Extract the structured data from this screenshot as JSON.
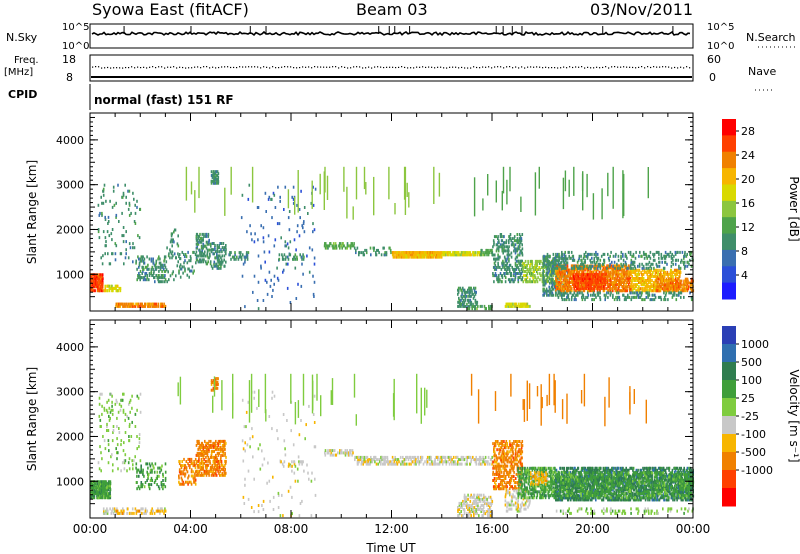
{
  "header": {
    "station": "Syowa East (fitACF)",
    "beam": "Beam 03",
    "date": "03/Nov/2011"
  },
  "strips": {
    "nsky_label": "N.Sky",
    "nsky_ticks": [
      "10^5",
      "10^0"
    ],
    "nsearch_label": "N.Search",
    "nsearch_ticks": [
      "10^5",
      "10^0"
    ],
    "freq_label": "Freq.",
    "freq_unit": "[MHz]",
    "freq_ticks": [
      "18",
      "8"
    ],
    "nave_label": "Nave",
    "nave_ticks": [
      "60",
      "0"
    ],
    "cpid_label": "CPID",
    "cpid_value": "normal (fast) 151 RF"
  },
  "chart_data": [
    {
      "type": "heatmap",
      "title": "",
      "xlabel": "Time UT",
      "ylabel": "Slant Range [km]",
      "x_ticks": [
        "00:00",
        "04:00",
        "08:00",
        "12:00",
        "16:00",
        "20:00",
        "00:00"
      ],
      "x_range_hours": [
        0,
        24
      ],
      "y_ticks": [
        1000,
        2000,
        3000,
        4000
      ],
      "ylim": [
        180,
        4600
      ],
      "colorbar": {
        "label": "Power [dB]",
        "ticks": [
          "4",
          "8",
          "12",
          "16",
          "20",
          "24",
          "28"
        ],
        "min": 0,
        "max": 30,
        "colors": [
          "#1c1cff",
          "#2b4fd8",
          "#3a6fb0",
          "#3f8e6a",
          "#4ea34a",
          "#8cc63f",
          "#d9d900",
          "#f7b500",
          "#f08000",
          "#ff4000",
          "#ff0000"
        ]
      },
      "regions": [
        {
          "t": [
            0.0,
            0.5
          ],
          "r": [
            600,
            1000
          ],
          "val": 26,
          "d": 0.8
        },
        {
          "t": [
            0.5,
            1.2
          ],
          "r": [
            600,
            750
          ],
          "val": 18,
          "d": 0.6
        },
        {
          "t": [
            1.0,
            3.0
          ],
          "r": [
            250,
            350
          ],
          "val": 24,
          "d": 0.7
        },
        {
          "t": [
            0.3,
            2.0
          ],
          "r": [
            1200,
            3000
          ],
          "val": 8,
          "d": 0.05
        },
        {
          "t": [
            1.8,
            3.0
          ],
          "r": [
            800,
            1400
          ],
          "val": 8,
          "d": 0.25
        },
        {
          "t": [
            3.0,
            3.5
          ],
          "r": [
            800,
            2000
          ],
          "val": 10,
          "d": 0.08
        },
        {
          "t": [
            3.5,
            4.2
          ],
          "r": [
            900,
            1500
          ],
          "val": 8,
          "d": 0.15
        },
        {
          "t": [
            4.2,
            4.8
          ],
          "r": [
            1200,
            1900
          ],
          "val": 9,
          "d": 0.35
        },
        {
          "t": [
            4.8,
            5.4
          ],
          "r": [
            1100,
            1700
          ],
          "val": 10,
          "d": 0.3
        },
        {
          "t": [
            4.8,
            5.1
          ],
          "r": [
            3000,
            3300
          ],
          "val": 10,
          "d": 0.7
        },
        {
          "t": [
            5.5,
            6.3
          ],
          "r": [
            1300,
            1500
          ],
          "val": 8,
          "d": 0.3
        },
        {
          "t": [
            6.0,
            9.0
          ],
          "r": [
            200,
            3000
          ],
          "val": 6,
          "d": 0.02
        },
        {
          "t": [
            7.5,
            8.5
          ],
          "r": [
            1300,
            1450
          ],
          "val": 8,
          "d": 0.3
        },
        {
          "t": [
            9.3,
            10.5
          ],
          "r": [
            1550,
            1700
          ],
          "val": 12,
          "d": 0.5
        },
        {
          "t": [
            10.5,
            12.0
          ],
          "r": [
            1400,
            1600
          ],
          "val": 8,
          "d": 0.2
        },
        {
          "t": [
            12.0,
            14.0
          ],
          "r": [
            1350,
            1500
          ],
          "val": 22,
          "d": 0.9
        },
        {
          "t": [
            14.0,
            15.5
          ],
          "r": [
            1400,
            1500
          ],
          "val": 18,
          "d": 0.8
        },
        {
          "t": [
            15.5,
            16.0
          ],
          "r": [
            1400,
            1550
          ],
          "val": 12,
          "d": 0.6
        },
        {
          "t": [
            14.6,
            15.4
          ],
          "r": [
            250,
            700
          ],
          "val": 8,
          "d": 0.35
        },
        {
          "t": [
            15.0,
            16.0
          ],
          "r": [
            200,
            300
          ],
          "val": 12,
          "d": 0.3
        },
        {
          "t": [
            16.0,
            17.2
          ],
          "r": [
            800,
            1900
          ],
          "val": 10,
          "d": 0.3
        },
        {
          "t": [
            16.5,
            17.5
          ],
          "r": [
            250,
            350
          ],
          "val": 18,
          "d": 0.6
        },
        {
          "t": [
            17.2,
            18.5
          ],
          "r": [
            800,
            1300
          ],
          "val": 14,
          "d": 0.35
        },
        {
          "t": [
            18.0,
            19.0
          ],
          "r": [
            500,
            1400
          ],
          "val": 8,
          "d": 0.35
        },
        {
          "t": [
            18.5,
            21.5
          ],
          "r": [
            600,
            1200
          ],
          "val": 24,
          "d": 0.6
        },
        {
          "t": [
            19.2,
            20.5
          ],
          "r": [
            650,
            1000
          ],
          "val": 28,
          "d": 0.7
        },
        {
          "t": [
            21.5,
            23.5
          ],
          "r": [
            600,
            1100
          ],
          "val": 20,
          "d": 0.5
        },
        {
          "t": [
            22.5,
            24.0
          ],
          "r": [
            600,
            900
          ],
          "val": 24,
          "d": 0.5
        },
        {
          "t": [
            18.0,
            24.0
          ],
          "r": [
            1100,
            1500
          ],
          "val": 8,
          "d": 0.2
        },
        {
          "t": [
            18.5,
            24.0
          ],
          "r": [
            400,
            600
          ],
          "val": 8,
          "d": 0.2
        }
      ],
      "streaks": [
        {
          "t": [
            3.0,
            14.0
          ],
          "r": [
            2200,
            3400
          ],
          "val": 16,
          "n": 30
        },
        {
          "t": [
            15.0,
            23.5
          ],
          "r": [
            2200,
            3400
          ],
          "val": 12,
          "n": 25
        }
      ]
    },
    {
      "type": "heatmap",
      "title": "",
      "xlabel": "Time UT",
      "ylabel": "Slant Range [km]",
      "x_ticks": [
        "00:00",
        "04:00",
        "08:00",
        "12:00",
        "16:00",
        "20:00",
        "00:00"
      ],
      "x_range_hours": [
        0,
        24
      ],
      "y_ticks": [
        1000,
        2000,
        3000,
        4000
      ],
      "ylim": [
        180,
        4600
      ],
      "colorbar": {
        "label": "Velocity [m s⁻¹]",
        "ticks": [
          "1000",
          "500",
          "100",
          "25",
          "-25",
          "-100",
          "-500",
          "-1000"
        ],
        "colors": [
          "#2a3fb5",
          "#2f6fb0",
          "#2f7d4f",
          "#3f9e3a",
          "#7fcc3f",
          "#c8c8c8",
          "#f7b500",
          "#f08000",
          "#ff4000",
          "#ff0000"
        ]
      },
      "regions": [
        {
          "t": [
            0.0,
            0.8
          ],
          "r": [
            600,
            1000
          ],
          "cls": 3,
          "d": 0.8
        },
        {
          "t": [
            0.5,
            3.0
          ],
          "r": [
            250,
            400
          ],
          "cls": 5,
          "d": 0.3
        },
        {
          "t": [
            1.0,
            3.0
          ],
          "r": [
            250,
            350
          ],
          "cls": 6,
          "d": 0.3
        },
        {
          "t": [
            0.3,
            2.0
          ],
          "r": [
            1200,
            3000
          ],
          "cls": 4,
          "d": 0.05
        },
        {
          "t": [
            1.8,
            3.0
          ],
          "r": [
            800,
            1400
          ],
          "cls": 3,
          "d": 0.2
        },
        {
          "t": [
            3.5,
            4.2
          ],
          "r": [
            900,
            1500
          ],
          "cls": 7,
          "d": 0.25
        },
        {
          "t": [
            4.2,
            5.4
          ],
          "r": [
            1100,
            1900
          ],
          "cls": 7,
          "d": 0.45
        },
        {
          "t": [
            4.8,
            5.1
          ],
          "r": [
            3000,
            3300
          ],
          "cls": 7,
          "d": 0.6
        },
        {
          "t": [
            6.0,
            9.0
          ],
          "r": [
            200,
            3000
          ],
          "cls": 5,
          "d": 0.02
        },
        {
          "t": [
            7.5,
            8.5
          ],
          "r": [
            1300,
            1450
          ],
          "cls": 5,
          "d": 0.3
        },
        {
          "t": [
            9.3,
            10.5
          ],
          "r": [
            1550,
            1700
          ],
          "cls": 5,
          "d": 0.4
        },
        {
          "t": [
            10.5,
            16.0
          ],
          "r": [
            1350,
            1550
          ],
          "cls": 5,
          "d": 0.45
        },
        {
          "t": [
            14.6,
            16.0
          ],
          "r": [
            200,
            700
          ],
          "cls": 5,
          "d": 0.35
        },
        {
          "t": [
            16.0,
            17.2
          ],
          "r": [
            800,
            1900
          ],
          "cls": 7,
          "d": 0.35
        },
        {
          "t": [
            16.5,
            17.5
          ],
          "r": [
            300,
            800
          ],
          "cls": 5,
          "d": 0.3
        },
        {
          "t": [
            17.0,
            18.5
          ],
          "r": [
            600,
            1300
          ],
          "cls": 3,
          "d": 0.45
        },
        {
          "t": [
            17.5,
            18.2
          ],
          "r": [
            900,
            1200
          ],
          "cls": 6,
          "d": 0.3
        },
        {
          "t": [
            18.5,
            24.0
          ],
          "r": [
            550,
            1300
          ],
          "cls": 2,
          "d": 0.5
        },
        {
          "t": [
            18.5,
            24.0
          ],
          "r": [
            600,
            1200
          ],
          "cls": 3,
          "d": 0.3
        },
        {
          "t": [
            18.5,
            24.0
          ],
          "r": [
            250,
            400
          ],
          "cls": 4,
          "d": 0.15
        }
      ],
      "streaks": [
        {
          "t": [
            3.0,
            14.0
          ],
          "r": [
            2200,
            3400
          ],
          "cls": 4,
          "n": 30
        },
        {
          "t": [
            15.0,
            23.5
          ],
          "r": [
            2200,
            3400
          ],
          "cls": 7,
          "n": 25
        }
      ]
    }
  ]
}
